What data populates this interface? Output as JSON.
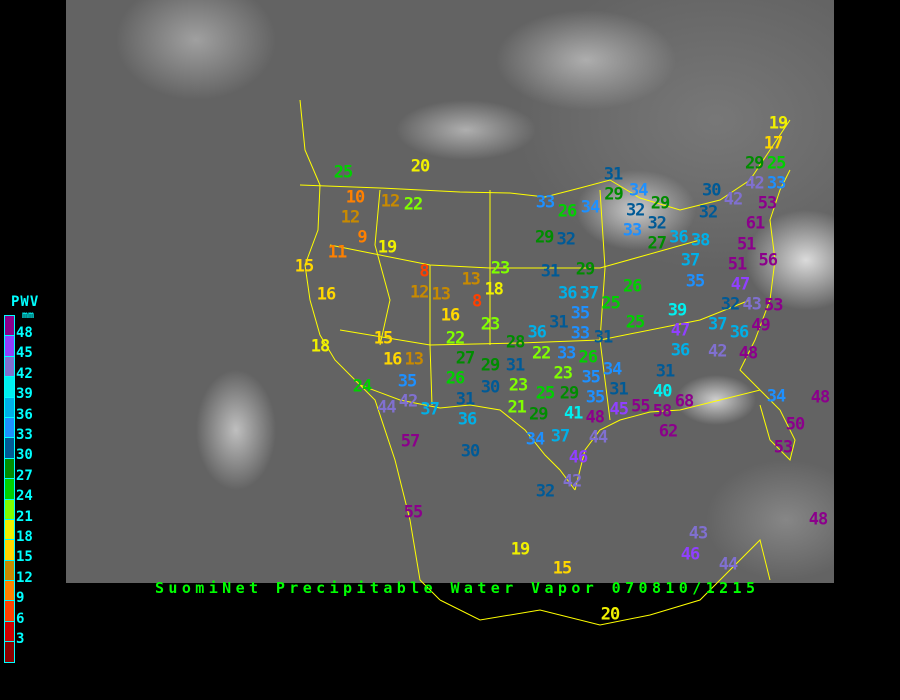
{
  "title": "SuomiNet Precipitable Water Vapor 070810/1215",
  "legend": {
    "title": "PWV",
    "unit": "mm",
    "labels": [
      "48",
      "45",
      "42",
      "39",
      "36",
      "33",
      "30",
      "27",
      "24",
      "21",
      "18",
      "15",
      "12",
      "9",
      "6",
      "3"
    ],
    "colors_top_to_bottom": [
      "#8b008b",
      "#9040ff",
      "#8070d0",
      "#00f0f0",
      "#00b0e8",
      "#1e90ff",
      "#005a96",
      "#008c00",
      "#00d000",
      "#80ff00",
      "#f0f000",
      "#ffd700",
      "#c88a00",
      "#ff8000",
      "#ff4000",
      "#d00000",
      "#8b0000"
    ]
  },
  "map": {
    "background": "#636363",
    "border_color": "#ffff00"
  },
  "stations": [
    25,
    10,
    12,
    22,
    12,
    9,
    11,
    19,
    15,
    16,
    8,
    13,
    12,
    18,
    13,
    8,
    16,
    23,
    23,
    20,
    18,
    15,
    16,
    13,
    22,
    27,
    26,
    29,
    31,
    30,
    24,
    35,
    42,
    44,
    37,
    31,
    36,
    23,
    21,
    29,
    25,
    28,
    36,
    33,
    31,
    22,
    23,
    26,
    29,
    35,
    41,
    48,
    44,
    57,
    30,
    34,
    37,
    46,
    42,
    32,
    33,
    26,
    34,
    31,
    29,
    34,
    32,
    33,
    29,
    32,
    29,
    32,
    31,
    29,
    27,
    36,
    38,
    37,
    35,
    26,
    37,
    25,
    36,
    35,
    31,
    33,
    25,
    39,
    19,
    17,
    25,
    29,
    42,
    33,
    30,
    42,
    32,
    53,
    61,
    51,
    56,
    51,
    47,
    43,
    53,
    32,
    37,
    49,
    36,
    42,
    48,
    47,
    36,
    31,
    40,
    34,
    35,
    31,
    45,
    55,
    58,
    68,
    62,
    34,
    48,
    50,
    53,
    55,
    19,
    20,
    15,
    43,
    46,
    44,
    48
  ]
}
